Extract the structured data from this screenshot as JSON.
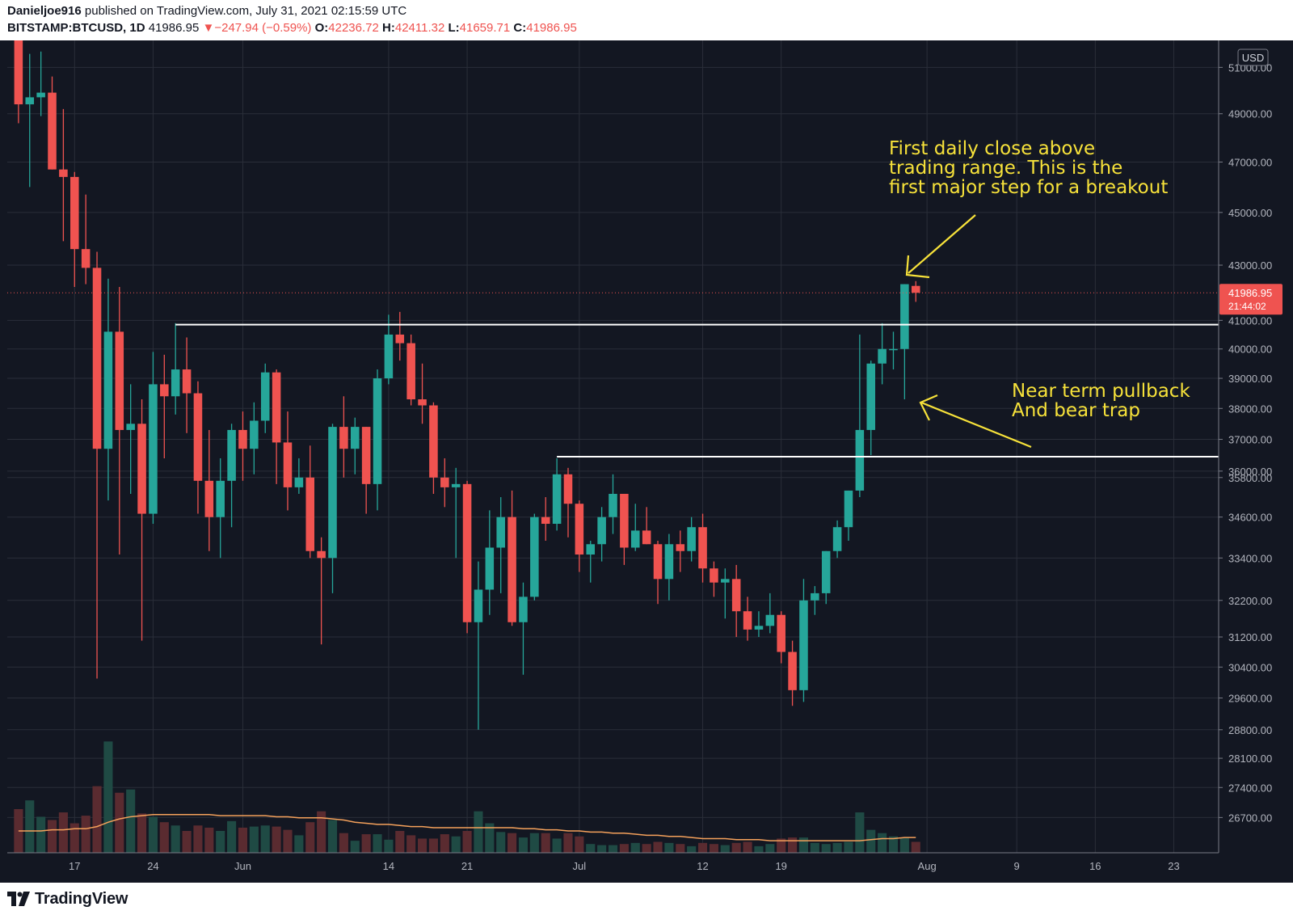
{
  "header": {
    "author": "Danieljoe916",
    "published_text": "published on TradingView.com, July 31, 2021 02:15:59 UTC",
    "symbol": "BITSTAMP:BTCUSD, 1D",
    "last_price": "41986.95",
    "change_arrow": "▼",
    "change": "−247.94 (−0.59%)",
    "open_label": "O:",
    "open": "42236.72",
    "high_label": "H:",
    "high": "42411.32",
    "low_label": "L:",
    "low": "41659.71",
    "close_label": "C:",
    "close": "41986.95"
  },
  "footer": {
    "brand": "TradingView",
    "logo_icon": "tradingview-logo-icon"
  },
  "price_axis": {
    "currency_label": "USD",
    "tick_labels": [
      "51000.00",
      "49000.00",
      "47000.00",
      "45000.00",
      "43000.00",
      "41000.00",
      "40000.00",
      "39000.00",
      "38000.00",
      "37000.00",
      "36000.00",
      "35800.00",
      "34600.00",
      "33400.00",
      "32200.00",
      "31200.00",
      "30400.00",
      "29600.00",
      "28800.00",
      "28100.00",
      "27400.00",
      "26700.00"
    ],
    "last_price_label": "41986.95",
    "countdown_label": "21:44:02"
  },
  "time_axis": {
    "tick_labels": [
      "17",
      "24",
      "Jun",
      "14",
      "21",
      "Jul",
      "12",
      "19",
      "Aug",
      "9",
      "16",
      "23"
    ]
  },
  "annotations": {
    "breakout_note": [
      "First daily close above",
      "trading range. This is the",
      "first major step for a breakout"
    ],
    "pullback_note": [
      "Near term pullback",
      "And bear trap"
    ]
  },
  "colors": {
    "background": "#131722",
    "grid": "#2a2e39",
    "up": "#26a69a",
    "down": "#ef5350",
    "volume_up": "#1f4a44",
    "volume_down": "#5a2b30",
    "ma_line": "#f5a15b",
    "annotation": "#f7e23a",
    "level_line": "#ffffff"
  },
  "chart_data": {
    "type": "candlestick",
    "title": "BITSTAMP:BTCUSD, 1D",
    "y_axis": {
      "type": "log",
      "unit": "USD",
      "range": [
        25900,
        52200
      ]
    },
    "x_axis": {
      "range": [
        "2021-05-11",
        "2021-08-27"
      ]
    },
    "grid": true,
    "candles": [
      {
        "date": "2021-05-12",
        "open": 55000,
        "high": 56100,
        "low": 48600,
        "close": 49400
      },
      {
        "date": "2021-05-13",
        "open": 49400,
        "high": 51600,
        "low": 46000,
        "close": 49700
      },
      {
        "date": "2021-05-14",
        "open": 49700,
        "high": 51700,
        "low": 48900,
        "close": 49900
      },
      {
        "date": "2021-05-15",
        "open": 49900,
        "high": 50600,
        "low": 46700,
        "close": 46700
      },
      {
        "date": "2021-05-16",
        "open": 46700,
        "high": 49200,
        "low": 43900,
        "close": 46400
      },
      {
        "date": "2021-05-17",
        "open": 46400,
        "high": 46600,
        "low": 42200,
        "close": 43600
      },
      {
        "date": "2021-05-18",
        "open": 43600,
        "high": 45700,
        "low": 42300,
        "close": 42900
      },
      {
        "date": "2021-05-19",
        "open": 42900,
        "high": 43500,
        "low": 30100,
        "close": 36700
      },
      {
        "date": "2021-05-20",
        "open": 36700,
        "high": 42500,
        "low": 35100,
        "close": 40600
      },
      {
        "date": "2021-05-21",
        "open": 40600,
        "high": 42200,
        "low": 33500,
        "close": 37300
      },
      {
        "date": "2021-05-22",
        "open": 37300,
        "high": 38800,
        "low": 35300,
        "close": 37500
      },
      {
        "date": "2021-05-23",
        "open": 37500,
        "high": 38300,
        "low": 31100,
        "close": 34700
      },
      {
        "date": "2021-05-24",
        "open": 34700,
        "high": 39900,
        "low": 34400,
        "close": 38800
      },
      {
        "date": "2021-05-25",
        "open": 38800,
        "high": 39800,
        "low": 36400,
        "close": 38400
      },
      {
        "date": "2021-05-26",
        "open": 38400,
        "high": 40900,
        "low": 37800,
        "close": 39300
      },
      {
        "date": "2021-05-27",
        "open": 39300,
        "high": 40400,
        "low": 37200,
        "close": 38500
      },
      {
        "date": "2021-05-28",
        "open": 38500,
        "high": 38900,
        "low": 34700,
        "close": 35700
      },
      {
        "date": "2021-05-29",
        "open": 35700,
        "high": 37300,
        "low": 33600,
        "close": 34600
      },
      {
        "date": "2021-05-30",
        "open": 34600,
        "high": 36400,
        "low": 33400,
        "close": 35700
      },
      {
        "date": "2021-05-31",
        "open": 35700,
        "high": 37500,
        "low": 34300,
        "close": 37300
      },
      {
        "date": "2021-06-01",
        "open": 37300,
        "high": 37900,
        "low": 35700,
        "close": 36700
      },
      {
        "date": "2021-06-02",
        "open": 36700,
        "high": 38200,
        "low": 35900,
        "close": 37600
      },
      {
        "date": "2021-06-03",
        "open": 37600,
        "high": 39500,
        "low": 37200,
        "close": 39200
      },
      {
        "date": "2021-06-04",
        "open": 39200,
        "high": 39300,
        "low": 35600,
        "close": 36900
      },
      {
        "date": "2021-06-05",
        "open": 36900,
        "high": 37900,
        "low": 34800,
        "close": 35500
      },
      {
        "date": "2021-06-06",
        "open": 35500,
        "high": 36400,
        "low": 35300,
        "close": 35800
      },
      {
        "date": "2021-06-07",
        "open": 35800,
        "high": 36800,
        "low": 33400,
        "close": 33600
      },
      {
        "date": "2021-06-08",
        "open": 33600,
        "high": 34000,
        "low": 31000,
        "close": 33400
      },
      {
        "date": "2021-06-09",
        "open": 33400,
        "high": 37500,
        "low": 32400,
        "close": 37400
      },
      {
        "date": "2021-06-10",
        "open": 37400,
        "high": 38400,
        "low": 35800,
        "close": 36700
      },
      {
        "date": "2021-06-11",
        "open": 36700,
        "high": 37700,
        "low": 35900,
        "close": 37400
      },
      {
        "date": "2021-06-12",
        "open": 37400,
        "high": 37400,
        "low": 34700,
        "close": 35600
      },
      {
        "date": "2021-06-13",
        "open": 35600,
        "high": 39300,
        "low": 34800,
        "close": 39000
      },
      {
        "date": "2021-06-14",
        "open": 39000,
        "high": 41200,
        "low": 38800,
        "close": 40500
      },
      {
        "date": "2021-06-15",
        "open": 40500,
        "high": 41300,
        "low": 39600,
        "close": 40200
      },
      {
        "date": "2021-06-16",
        "open": 40200,
        "high": 40500,
        "low": 38100,
        "close": 38300
      },
      {
        "date": "2021-06-17",
        "open": 38300,
        "high": 39500,
        "low": 37500,
        "close": 38100
      },
      {
        "date": "2021-06-18",
        "open": 38100,
        "high": 38200,
        "low": 35300,
        "close": 35800
      },
      {
        "date": "2021-06-19",
        "open": 35800,
        "high": 36400,
        "low": 34900,
        "close": 35500
      },
      {
        "date": "2021-06-20",
        "open": 35500,
        "high": 36100,
        "low": 33400,
        "close": 35600
      },
      {
        "date": "2021-06-21",
        "open": 35600,
        "high": 35700,
        "low": 31300,
        "close": 31600
      },
      {
        "date": "2021-06-22",
        "open": 31600,
        "high": 33300,
        "low": 28800,
        "close": 32500
      },
      {
        "date": "2021-06-23",
        "open": 32500,
        "high": 34800,
        "low": 31800,
        "close": 33700
      },
      {
        "date": "2021-06-24",
        "open": 33700,
        "high": 35200,
        "low": 32400,
        "close": 34600
      },
      {
        "date": "2021-06-25",
        "open": 34600,
        "high": 35400,
        "low": 31500,
        "close": 31600
      },
      {
        "date": "2021-06-26",
        "open": 31600,
        "high": 32700,
        "low": 30200,
        "close": 32300
      },
      {
        "date": "2021-06-27",
        "open": 32300,
        "high": 34700,
        "low": 32200,
        "close": 34600
      },
      {
        "date": "2021-06-28",
        "open": 34600,
        "high": 35200,
        "low": 33900,
        "close": 34400
      },
      {
        "date": "2021-06-29",
        "open": 34400,
        "high": 36400,
        "low": 34200,
        "close": 35900
      },
      {
        "date": "2021-06-30",
        "open": 35900,
        "high": 36100,
        "low": 34000,
        "close": 35000
      },
      {
        "date": "2021-07-01",
        "open": 35000,
        "high": 35100,
        "low": 33000,
        "close": 33500
      },
      {
        "date": "2021-07-02",
        "open": 33500,
        "high": 33900,
        "low": 32700,
        "close": 33800
      },
      {
        "date": "2021-07-03",
        "open": 33800,
        "high": 34900,
        "low": 33300,
        "close": 34600
      },
      {
        "date": "2021-07-04",
        "open": 34600,
        "high": 35900,
        "low": 34100,
        "close": 35300
      },
      {
        "date": "2021-07-05",
        "open": 35300,
        "high": 35300,
        "low": 33200,
        "close": 33700
      },
      {
        "date": "2021-07-06",
        "open": 33700,
        "high": 35000,
        "low": 33600,
        "close": 34200
      },
      {
        "date": "2021-07-07",
        "open": 34200,
        "high": 34900,
        "low": 33800,
        "close": 33800
      },
      {
        "date": "2021-07-08",
        "open": 33800,
        "high": 33900,
        "low": 32100,
        "close": 32800
      },
      {
        "date": "2021-07-09",
        "open": 32800,
        "high": 34100,
        "low": 32200,
        "close": 33800
      },
      {
        "date": "2021-07-10",
        "open": 33800,
        "high": 34200,
        "low": 33000,
        "close": 33600
      },
      {
        "date": "2021-07-11",
        "open": 33600,
        "high": 34600,
        "low": 33300,
        "close": 34300
      },
      {
        "date": "2021-07-12",
        "open": 34300,
        "high": 34700,
        "low": 32700,
        "close": 33100
      },
      {
        "date": "2021-07-13",
        "open": 33100,
        "high": 33300,
        "low": 32300,
        "close": 32700
      },
      {
        "date": "2021-07-14",
        "open": 32700,
        "high": 33100,
        "low": 31700,
        "close": 32800
      },
      {
        "date": "2021-07-15",
        "open": 32800,
        "high": 33200,
        "low": 31200,
        "close": 31900
      },
      {
        "date": "2021-07-16",
        "open": 31900,
        "high": 32300,
        "low": 31100,
        "close": 31400
      },
      {
        "date": "2021-07-17",
        "open": 31400,
        "high": 31900,
        "low": 31200,
        "close": 31500
      },
      {
        "date": "2021-07-18",
        "open": 31500,
        "high": 32400,
        "low": 31300,
        "close": 31800
      },
      {
        "date": "2021-07-19",
        "open": 31800,
        "high": 31900,
        "low": 30500,
        "close": 30800
      },
      {
        "date": "2021-07-20",
        "open": 30800,
        "high": 31100,
        "low": 29400,
        "close": 29800
      },
      {
        "date": "2021-07-21",
        "open": 29800,
        "high": 32800,
        "low": 29500,
        "close": 32200
      },
      {
        "date": "2021-07-22",
        "open": 32200,
        "high": 32600,
        "low": 31800,
        "close": 32400
      },
      {
        "date": "2021-07-23",
        "open": 32400,
        "high": 33600,
        "low": 32100,
        "close": 33600
      },
      {
        "date": "2021-07-24",
        "open": 33600,
        "high": 34500,
        "low": 33400,
        "close": 34300
      },
      {
        "date": "2021-07-25",
        "open": 34300,
        "high": 35400,
        "low": 33900,
        "close": 35400
      },
      {
        "date": "2021-07-26",
        "open": 35400,
        "high": 40500,
        "low": 35200,
        "close": 37300
      },
      {
        "date": "2021-07-27",
        "open": 37300,
        "high": 39600,
        "low": 36500,
        "close": 39500
      },
      {
        "date": "2021-07-28",
        "open": 39500,
        "high": 40900,
        "low": 38800,
        "close": 40000
      },
      {
        "date": "2021-07-29",
        "open": 40000,
        "high": 40600,
        "low": 39300,
        "close": 40000
      },
      {
        "date": "2021-07-30",
        "open": 40000,
        "high": 42300,
        "low": 38300,
        "close": 42300
      },
      {
        "date": "2021-07-31",
        "open": 42236.72,
        "high": 42411.32,
        "low": 41659.71,
        "close": 41986.95
      }
    ],
    "volume": [
      40,
      48,
      33,
      30,
      37,
      27,
      34,
      61,
      102,
      55,
      58,
      36,
      33,
      28,
      25,
      20,
      25,
      23,
      20,
      29,
      23,
      24,
      25,
      24,
      21,
      16,
      28,
      38,
      30,
      18,
      11,
      17,
      17,
      12,
      20,
      16,
      13,
      13,
      17,
      15,
      20,
      38,
      27,
      19,
      18,
      14,
      18,
      18,
      13,
      18,
      15,
      8,
      7,
      7,
      8,
      9,
      8,
      10,
      9,
      8,
      6,
      9,
      8,
      7,
      9,
      10,
      6,
      8,
      13,
      14,
      14,
      9,
      8,
      9,
      10,
      37,
      21,
      18,
      15,
      14,
      10
    ],
    "moving_average_volume": [
      20,
      20,
      20,
      21,
      21,
      22,
      22,
      24,
      28,
      31,
      33,
      34,
      35,
      35,
      35,
      35,
      35,
      35,
      34,
      34,
      34,
      34,
      34,
      33,
      33,
      32,
      32,
      32,
      31,
      30,
      28,
      27,
      26,
      26,
      25,
      24,
      24,
      23,
      23,
      23,
      23,
      23,
      23,
      23,
      23,
      22,
      22,
      21,
      21,
      20,
      20,
      19,
      19,
      18,
      18,
      17,
      16,
      16,
      15,
      15,
      14,
      13,
      13,
      13,
      12,
      12,
      12,
      11,
      11,
      11,
      11,
      11,
      11,
      11,
      11,
      11,
      12,
      13,
      13,
      14,
      14
    ],
    "horizontal_levels": [
      {
        "price": 40850,
        "from": "2021-05-26",
        "to": "axis"
      },
      {
        "price": 36450,
        "from": "2021-06-29",
        "to": "axis"
      }
    ],
    "last_price_line": 41986.95
  }
}
